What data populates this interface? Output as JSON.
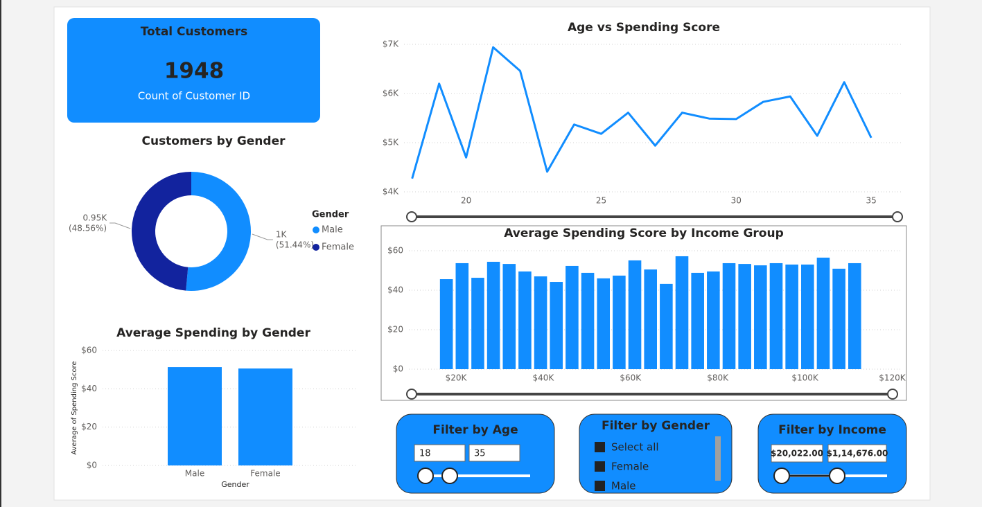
{
  "card": {
    "title": "Total Customers",
    "value": 1948,
    "caption": "Count of Customer ID"
  },
  "chart_data": [
    {
      "type": "donut",
      "title": "Customers by Gender",
      "legend_title": "Gender",
      "categories": [
        "Male",
        "Female"
      ],
      "values": [
        1002,
        946
      ],
      "value_labels": [
        "1K",
        "0.95K"
      ],
      "percent_labels": [
        "(51.44%)",
        "(48.56%)"
      ],
      "colors": [
        "#118dff",
        "#12239e"
      ]
    },
    {
      "type": "bar",
      "title": "Average Spending by Gender",
      "x_label": "Gender",
      "y_label": "Average of Spending Score",
      "categories": [
        "Male",
        "Female"
      ],
      "values": [
        51.3,
        50.6
      ],
      "color": "#118dff",
      "ylim": [
        0,
        60
      ],
      "yticks": [
        {
          "value": 0,
          "label": "$0"
        },
        {
          "value": 20,
          "label": "$20"
        },
        {
          "value": 40,
          "label": "$40"
        },
        {
          "value": 60,
          "label": "$60"
        }
      ],
      "grid": true
    },
    {
      "type": "line",
      "title": "Age vs Spending Score",
      "color": "#118dff",
      "x": [
        18,
        19,
        20,
        21,
        22,
        23,
        24,
        25,
        26,
        27,
        28,
        29,
        30,
        31,
        32,
        33,
        34,
        35
      ],
      "values": [
        4270,
        6200,
        4700,
        6940,
        6460,
        4410,
        5370,
        5180,
        5610,
        4940,
        5610,
        5490,
        5480,
        5830,
        5940,
        5140,
        6230,
        5100
      ],
      "xlim": [
        17.7,
        36.1
      ],
      "xticks": [
        20,
        25,
        30,
        35
      ],
      "ylim": [
        4000,
        7000
      ],
      "yticks": [
        {
          "value": 4000,
          "label": "$4K"
        },
        {
          "value": 5000,
          "label": "$5K"
        },
        {
          "value": 6000,
          "label": "$6K"
        },
        {
          "value": 7000,
          "label": "$7K"
        }
      ],
      "grid": true
    },
    {
      "type": "column",
      "title": "Average Spending Score by Income Group",
      "color": "#118dff",
      "x": [
        17800,
        21400,
        25000,
        28600,
        32200,
        35800,
        39400,
        43000,
        46600,
        50200,
        53800,
        57400,
        61000,
        64600,
        68200,
        71800,
        75400,
        79000,
        82600,
        86200,
        89800,
        93400,
        97000,
        100600,
        104200,
        107800,
        111400
      ],
      "values": [
        45.6,
        53.7,
        46.3,
        54.4,
        53.3,
        49.5,
        47.0,
        44.2,
        52.3,
        48.8,
        46.0,
        47.4,
        55.1,
        50.5,
        43.2,
        57.2,
        48.8,
        49.5,
        53.7,
        53.3,
        52.6,
        53.7,
        53.0,
        53.0,
        56.5,
        50.9,
        53.7
      ],
      "xlim": [
        9200,
        122000
      ],
      "xticks": [
        {
          "value": 20000,
          "label": "$20K"
        },
        {
          "value": 40000,
          "label": "$40K"
        },
        {
          "value": 60000,
          "label": "$60K"
        },
        {
          "value": 80000,
          "label": "$80K"
        },
        {
          "value": 100000,
          "label": "$100K"
        },
        {
          "value": 120000,
          "label": "$120K"
        }
      ],
      "ylim": [
        0,
        60
      ],
      "yticks": [
        {
          "value": 0,
          "label": "$0"
        },
        {
          "value": 20,
          "label": "$20"
        },
        {
          "value": 40,
          "label": "$40"
        },
        {
          "value": 60,
          "label": "$60"
        }
      ],
      "grid": true
    }
  ],
  "filters": {
    "age": {
      "title": "Filter by Age",
      "from": "18",
      "to": "35"
    },
    "gender": {
      "title": "Filter by Gender",
      "options": [
        "Select all",
        "Female",
        "Male"
      ]
    },
    "income": {
      "title": "Filter by Income",
      "from": "$20,022.00",
      "to": "$1,14,676.00"
    }
  }
}
